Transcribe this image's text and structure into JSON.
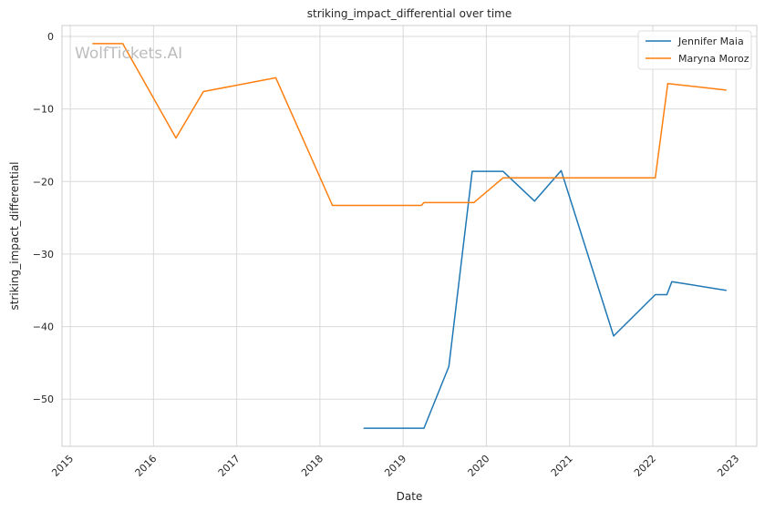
{
  "chart_data": {
    "type": "line",
    "title": "striking_impact_differential over time",
    "xlabel": "Date",
    "ylabel": "striking_impact_differential",
    "watermark": "WolfTickets.AI",
    "xlim": [
      2014.9,
      2023.25
    ],
    "ylim": [
      -56.5,
      1.5
    ],
    "x_ticks": [
      2015,
      2016,
      2017,
      2018,
      2019,
      2020,
      2021,
      2022,
      2023
    ],
    "x_tick_labels": [
      "2015",
      "2016",
      "2017",
      "2018",
      "2019",
      "2020",
      "2021",
      "2022",
      "2023"
    ],
    "y_ticks": [
      0,
      -10,
      -20,
      -30,
      -40,
      -50
    ],
    "y_tick_labels": [
      "0",
      "−10",
      "−20",
      "−30",
      "−40",
      "−50"
    ],
    "grid": true,
    "legend_position": "top-right",
    "series": [
      {
        "name": "Jennifer Maia",
        "color": "#1f77b4",
        "x": [
          2018.53,
          2019.25,
          2019.55,
          2019.83,
          2020.2,
          2020.58,
          2020.9,
          2021.53,
          2022.03,
          2022.17,
          2022.23,
          2022.88
        ],
        "y": [
          -54.0,
          -54.0,
          -45.5,
          -18.6,
          -18.6,
          -22.7,
          -18.5,
          -41.3,
          -35.6,
          -35.6,
          -33.8,
          -35.0
        ]
      },
      {
        "name": "Maryna Moroz",
        "color": "#ff7f0e",
        "x": [
          2015.27,
          2015.63,
          2016.27,
          2016.6,
          2017.47,
          2018.15,
          2019.22,
          2019.25,
          2019.85,
          2020.2,
          2022.03,
          2022.18,
          2022.88
        ],
        "y": [
          -1.0,
          -1.0,
          -14.0,
          -7.6,
          -5.7,
          -23.3,
          -23.3,
          -22.9,
          -22.9,
          -19.5,
          -19.5,
          -6.5,
          -7.4
        ]
      }
    ]
  }
}
